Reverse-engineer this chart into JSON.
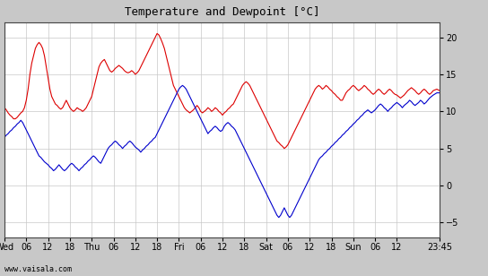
{
  "title": "Temperature and Dewpoint [°C]",
  "ylim": [
    -7,
    22
  ],
  "yticks": [
    -5,
    0,
    5,
    10,
    15,
    20
  ],
  "outer_bg": "#c8c8c8",
  "plot_bg_color": "#ffffff",
  "grid_color": "#c8c8c8",
  "temp_color": "#dd0000",
  "dewp_color": "#0000cc",
  "line_width": 0.8,
  "watermark": "www.vaisala.com",
  "xlabel_ticks": [
    "Wed",
    "06",
    "12",
    "18",
    "Thu",
    "06",
    "12",
    "18",
    "Fri",
    "06",
    "12",
    "18",
    "Sat",
    "06",
    "12",
    "18",
    "Sun",
    "06",
    "12",
    "23:45"
  ],
  "xtick_positions": [
    0,
    6,
    12,
    18,
    24,
    30,
    36,
    42,
    48,
    54,
    60,
    66,
    72,
    78,
    84,
    90,
    96,
    102,
    108,
    119.75
  ],
  "total_hours": 119.75,
  "temp_data": [
    [
      0,
      10.5
    ],
    [
      0.5,
      10.2
    ],
    [
      1,
      9.8
    ],
    [
      1.5,
      9.5
    ],
    [
      2,
      9.3
    ],
    [
      2.5,
      9.0
    ],
    [
      3,
      9.0
    ],
    [
      3.5,
      9.2
    ],
    [
      4,
      9.5
    ],
    [
      4.5,
      9.8
    ],
    [
      5,
      10.0
    ],
    [
      5.5,
      10.5
    ],
    [
      6,
      11.5
    ],
    [
      6.5,
      13.0
    ],
    [
      7,
      15.0
    ],
    [
      7.5,
      16.5
    ],
    [
      8,
      17.5
    ],
    [
      8.5,
      18.5
    ],
    [
      9,
      19.0
    ],
    [
      9.5,
      19.3
    ],
    [
      10,
      19.0
    ],
    [
      10.5,
      18.5
    ],
    [
      11,
      17.5
    ],
    [
      11.5,
      16.0
    ],
    [
      12,
      14.5
    ],
    [
      12.5,
      13.0
    ],
    [
      13,
      12.0
    ],
    [
      13.5,
      11.5
    ],
    [
      14,
      11.0
    ],
    [
      14.5,
      10.8
    ],
    [
      15,
      10.5
    ],
    [
      15.5,
      10.3
    ],
    [
      16,
      10.5
    ],
    [
      16.5,
      11.0
    ],
    [
      17,
      11.5
    ],
    [
      17.5,
      11.0
    ],
    [
      18,
      10.5
    ],
    [
      18.5,
      10.2
    ],
    [
      19,
      10.0
    ],
    [
      19.5,
      10.2
    ],
    [
      20,
      10.5
    ],
    [
      20.5,
      10.3
    ],
    [
      21,
      10.2
    ],
    [
      21.5,
      10.0
    ],
    [
      22,
      10.2
    ],
    [
      22.5,
      10.5
    ],
    [
      23,
      11.0
    ],
    [
      23.5,
      11.5
    ],
    [
      24,
      12.0
    ],
    [
      24.5,
      13.0
    ],
    [
      25,
      14.0
    ],
    [
      25.5,
      15.0
    ],
    [
      26,
      16.0
    ],
    [
      26.5,
      16.5
    ],
    [
      27,
      16.8
    ],
    [
      27.5,
      17.0
    ],
    [
      28,
      16.5
    ],
    [
      28.5,
      16.0
    ],
    [
      29,
      15.5
    ],
    [
      29.5,
      15.3
    ],
    [
      30,
      15.5
    ],
    [
      30.5,
      15.8
    ],
    [
      31,
      16.0
    ],
    [
      31.5,
      16.2
    ],
    [
      32,
      16.0
    ],
    [
      32.5,
      15.8
    ],
    [
      33,
      15.5
    ],
    [
      33.5,
      15.3
    ],
    [
      34,
      15.2
    ],
    [
      34.5,
      15.3
    ],
    [
      35,
      15.5
    ],
    [
      35.5,
      15.3
    ],
    [
      36,
      15.0
    ],
    [
      36.5,
      15.2
    ],
    [
      37,
      15.5
    ],
    [
      37.5,
      16.0
    ],
    [
      38,
      16.5
    ],
    [
      38.5,
      17.0
    ],
    [
      39,
      17.5
    ],
    [
      39.5,
      18.0
    ],
    [
      40,
      18.5
    ],
    [
      40.5,
      19.0
    ],
    [
      41,
      19.5
    ],
    [
      41.5,
      20.0
    ],
    [
      42,
      20.5
    ],
    [
      42.5,
      20.3
    ],
    [
      43,
      19.8
    ],
    [
      43.5,
      19.2
    ],
    [
      44,
      18.5
    ],
    [
      44.5,
      17.5
    ],
    [
      45,
      16.5
    ],
    [
      45.5,
      15.5
    ],
    [
      46,
      14.5
    ],
    [
      46.5,
      13.5
    ],
    [
      47,
      13.0
    ],
    [
      47.5,
      12.5
    ],
    [
      48,
      12.0
    ],
    [
      48.5,
      11.5
    ],
    [
      49,
      11.0
    ],
    [
      49.5,
      10.5
    ],
    [
      50,
      10.2
    ],
    [
      50.5,
      10.0
    ],
    [
      51,
      9.8
    ],
    [
      51.5,
      10.0
    ],
    [
      52,
      10.2
    ],
    [
      52.5,
      10.5
    ],
    [
      53,
      10.8
    ],
    [
      53.5,
      10.5
    ],
    [
      54,
      10.0
    ],
    [
      54.5,
      9.8
    ],
    [
      55,
      10.0
    ],
    [
      55.5,
      10.2
    ],
    [
      56,
      10.5
    ],
    [
      56.5,
      10.3
    ],
    [
      57,
      10.0
    ],
    [
      57.5,
      10.2
    ],
    [
      58,
      10.5
    ],
    [
      58.5,
      10.3
    ],
    [
      59,
      10.0
    ],
    [
      59.5,
      9.8
    ],
    [
      60,
      9.5
    ],
    [
      60.5,
      9.8
    ],
    [
      61,
      10.0
    ],
    [
      61.5,
      10.3
    ],
    [
      62,
      10.5
    ],
    [
      62.5,
      10.8
    ],
    [
      63,
      11.0
    ],
    [
      63.5,
      11.5
    ],
    [
      64,
      12.0
    ],
    [
      64.5,
      12.5
    ],
    [
      65,
      13.0
    ],
    [
      65.5,
      13.5
    ],
    [
      66,
      13.8
    ],
    [
      66.5,
      14.0
    ],
    [
      67,
      13.8
    ],
    [
      67.5,
      13.5
    ],
    [
      68,
      13.0
    ],
    [
      68.5,
      12.5
    ],
    [
      69,
      12.0
    ],
    [
      69.5,
      11.5
    ],
    [
      70,
      11.0
    ],
    [
      70.5,
      10.5
    ],
    [
      71,
      10.0
    ],
    [
      71.5,
      9.5
    ],
    [
      72,
      9.0
    ],
    [
      72.5,
      8.5
    ],
    [
      73,
      8.0
    ],
    [
      73.5,
      7.5
    ],
    [
      74,
      7.0
    ],
    [
      74.5,
      6.5
    ],
    [
      75,
      6.0
    ],
    [
      75.5,
      5.8
    ],
    [
      76,
      5.5
    ],
    [
      76.5,
      5.3
    ],
    [
      77,
      5.0
    ],
    [
      77.5,
      5.2
    ],
    [
      78,
      5.5
    ],
    [
      78.5,
      6.0
    ],
    [
      79,
      6.5
    ],
    [
      79.5,
      7.0
    ],
    [
      80,
      7.5
    ],
    [
      80.5,
      8.0
    ],
    [
      81,
      8.5
    ],
    [
      81.5,
      9.0
    ],
    [
      82,
      9.5
    ],
    [
      82.5,
      10.0
    ],
    [
      83,
      10.5
    ],
    [
      83.5,
      11.0
    ],
    [
      84,
      11.5
    ],
    [
      84.5,
      12.0
    ],
    [
      85,
      12.5
    ],
    [
      85.5,
      13.0
    ],
    [
      86,
      13.3
    ],
    [
      86.5,
      13.5
    ],
    [
      87,
      13.3
    ],
    [
      87.5,
      13.0
    ],
    [
      88,
      13.2
    ],
    [
      88.5,
      13.5
    ],
    [
      89,
      13.3
    ],
    [
      89.5,
      13.0
    ],
    [
      90,
      12.8
    ],
    [
      90.5,
      12.5
    ],
    [
      91,
      12.3
    ],
    [
      91.5,
      12.0
    ],
    [
      92,
      11.8
    ],
    [
      92.5,
      11.5
    ],
    [
      93,
      11.5
    ],
    [
      93.5,
      12.0
    ],
    [
      94,
      12.5
    ],
    [
      94.5,
      12.8
    ],
    [
      95,
      13.0
    ],
    [
      95.5,
      13.3
    ],
    [
      96,
      13.5
    ],
    [
      96.5,
      13.3
    ],
    [
      97,
      13.0
    ],
    [
      97.5,
      12.8
    ],
    [
      98,
      13.0
    ],
    [
      98.5,
      13.2
    ],
    [
      99,
      13.5
    ],
    [
      99.5,
      13.3
    ],
    [
      100,
      13.0
    ],
    [
      100.5,
      12.8
    ],
    [
      101,
      12.5
    ],
    [
      101.5,
      12.3
    ],
    [
      102,
      12.5
    ],
    [
      102.5,
      12.8
    ],
    [
      103,
      13.0
    ],
    [
      103.5,
      12.8
    ],
    [
      104,
      12.5
    ],
    [
      104.5,
      12.3
    ],
    [
      105,
      12.5
    ],
    [
      105.5,
      12.8
    ],
    [
      106,
      13.0
    ],
    [
      106.5,
      12.8
    ],
    [
      107,
      12.5
    ],
    [
      107.5,
      12.3
    ],
    [
      108,
      12.2
    ],
    [
      108.5,
      12.0
    ],
    [
      109,
      11.8
    ],
    [
      109.5,
      12.0
    ],
    [
      110,
      12.2
    ],
    [
      110.5,
      12.5
    ],
    [
      111,
      12.8
    ],
    [
      111.5,
      13.0
    ],
    [
      112,
      13.2
    ],
    [
      112.5,
      13.0
    ],
    [
      113,
      12.8
    ],
    [
      113.5,
      12.5
    ],
    [
      114,
      12.3
    ],
    [
      114.5,
      12.5
    ],
    [
      115,
      12.8
    ],
    [
      115.5,
      13.0
    ],
    [
      116,
      12.8
    ],
    [
      116.5,
      12.5
    ],
    [
      117,
      12.3
    ],
    [
      117.5,
      12.5
    ],
    [
      118,
      12.8
    ],
    [
      119,
      13.0
    ],
    [
      119.75,
      12.8
    ]
  ],
  "dewp_data": [
    [
      0,
      6.5
    ],
    [
      0.5,
      6.8
    ],
    [
      1,
      7.0
    ],
    [
      1.5,
      7.3
    ],
    [
      2,
      7.5
    ],
    [
      2.5,
      7.8
    ],
    [
      3,
      8.0
    ],
    [
      3.5,
      8.3
    ],
    [
      4,
      8.5
    ],
    [
      4.5,
      8.8
    ],
    [
      5,
      8.5
    ],
    [
      5.5,
      8.0
    ],
    [
      6,
      7.5
    ],
    [
      6.5,
      7.0
    ],
    [
      7,
      6.5
    ],
    [
      7.5,
      6.0
    ],
    [
      8,
      5.5
    ],
    [
      8.5,
      5.0
    ],
    [
      9,
      4.5
    ],
    [
      9.5,
      4.0
    ],
    [
      10,
      3.8
    ],
    [
      10.5,
      3.5
    ],
    [
      11,
      3.2
    ],
    [
      11.5,
      3.0
    ],
    [
      12,
      2.8
    ],
    [
      12.5,
      2.5
    ],
    [
      13,
      2.3
    ],
    [
      13.5,
      2.0
    ],
    [
      14,
      2.2
    ],
    [
      14.5,
      2.5
    ],
    [
      15,
      2.8
    ],
    [
      15.5,
      2.5
    ],
    [
      16,
      2.2
    ],
    [
      16.5,
      2.0
    ],
    [
      17,
      2.2
    ],
    [
      17.5,
      2.5
    ],
    [
      18,
      2.8
    ],
    [
      18.5,
      3.0
    ],
    [
      19,
      2.8
    ],
    [
      19.5,
      2.5
    ],
    [
      20,
      2.3
    ],
    [
      20.5,
      2.0
    ],
    [
      21,
      2.3
    ],
    [
      21.5,
      2.5
    ],
    [
      22,
      2.8
    ],
    [
      22.5,
      3.0
    ],
    [
      23,
      3.3
    ],
    [
      23.5,
      3.5
    ],
    [
      24,
      3.8
    ],
    [
      24.5,
      4.0
    ],
    [
      25,
      3.8
    ],
    [
      25.5,
      3.5
    ],
    [
      26,
      3.2
    ],
    [
      26.5,
      3.0
    ],
    [
      27,
      3.5
    ],
    [
      27.5,
      4.0
    ],
    [
      28,
      4.5
    ],
    [
      28.5,
      5.0
    ],
    [
      29,
      5.3
    ],
    [
      29.5,
      5.5
    ],
    [
      30,
      5.8
    ],
    [
      30.5,
      6.0
    ],
    [
      31,
      5.8
    ],
    [
      31.5,
      5.5
    ],
    [
      32,
      5.3
    ],
    [
      32.5,
      5.0
    ],
    [
      33,
      5.3
    ],
    [
      33.5,
      5.5
    ],
    [
      34,
      5.8
    ],
    [
      34.5,
      6.0
    ],
    [
      35,
      5.8
    ],
    [
      35.5,
      5.5
    ],
    [
      36,
      5.2
    ],
    [
      36.5,
      5.0
    ],
    [
      37,
      4.8
    ],
    [
      37.5,
      4.5
    ],
    [
      38,
      4.8
    ],
    [
      38.5,
      5.0
    ],
    [
      39,
      5.3
    ],
    [
      39.5,
      5.5
    ],
    [
      40,
      5.8
    ],
    [
      40.5,
      6.0
    ],
    [
      41,
      6.3
    ],
    [
      41.5,
      6.5
    ],
    [
      42,
      7.0
    ],
    [
      42.5,
      7.5
    ],
    [
      43,
      8.0
    ],
    [
      43.5,
      8.5
    ],
    [
      44,
      9.0
    ],
    [
      44.5,
      9.5
    ],
    [
      45,
      10.0
    ],
    [
      45.5,
      10.5
    ],
    [
      46,
      11.0
    ],
    [
      46.5,
      11.5
    ],
    [
      47,
      12.0
    ],
    [
      47.5,
      12.5
    ],
    [
      48,
      13.0
    ],
    [
      48.5,
      13.3
    ],
    [
      49,
      13.5
    ],
    [
      49.5,
      13.3
    ],
    [
      50,
      13.0
    ],
    [
      50.5,
      12.5
    ],
    [
      51,
      12.0
    ],
    [
      51.5,
      11.5
    ],
    [
      52,
      11.0
    ],
    [
      52.5,
      10.5
    ],
    [
      53,
      10.0
    ],
    [
      53.5,
      9.5
    ],
    [
      54,
      9.0
    ],
    [
      54.5,
      8.5
    ],
    [
      55,
      8.0
    ],
    [
      55.5,
      7.5
    ],
    [
      56,
      7.0
    ],
    [
      56.5,
      7.3
    ],
    [
      57,
      7.5
    ],
    [
      57.5,
      7.8
    ],
    [
      58,
      8.0
    ],
    [
      58.5,
      7.8
    ],
    [
      59,
      7.5
    ],
    [
      59.5,
      7.3
    ],
    [
      60,
      7.5
    ],
    [
      60.5,
      8.0
    ],
    [
      61,
      8.3
    ],
    [
      61.5,
      8.5
    ],
    [
      62,
      8.3
    ],
    [
      62.5,
      8.0
    ],
    [
      63,
      7.8
    ],
    [
      63.5,
      7.5
    ],
    [
      64,
      7.0
    ],
    [
      64.5,
      6.5
    ],
    [
      65,
      6.0
    ],
    [
      65.5,
      5.5
    ],
    [
      66,
      5.0
    ],
    [
      66.5,
      4.5
    ],
    [
      67,
      4.0
    ],
    [
      67.5,
      3.5
    ],
    [
      68,
      3.0
    ],
    [
      68.5,
      2.5
    ],
    [
      69,
      2.0
    ],
    [
      69.5,
      1.5
    ],
    [
      70,
      1.0
    ],
    [
      70.5,
      0.5
    ],
    [
      71,
      0.0
    ],
    [
      71.5,
      -0.5
    ],
    [
      72,
      -1.0
    ],
    [
      72.5,
      -1.5
    ],
    [
      73,
      -2.0
    ],
    [
      73.5,
      -2.5
    ],
    [
      74,
      -3.0
    ],
    [
      74.5,
      -3.5
    ],
    [
      75,
      -4.0
    ],
    [
      75.5,
      -4.3
    ],
    [
      76,
      -4.0
    ],
    [
      76.5,
      -3.5
    ],
    [
      77,
      -3.0
    ],
    [
      77.5,
      -3.5
    ],
    [
      78,
      -4.0
    ],
    [
      78.5,
      -4.3
    ],
    [
      79,
      -4.0
    ],
    [
      79.5,
      -3.5
    ],
    [
      80,
      -3.0
    ],
    [
      80.5,
      -2.5
    ],
    [
      81,
      -2.0
    ],
    [
      81.5,
      -1.5
    ],
    [
      82,
      -1.0
    ],
    [
      82.5,
      -0.5
    ],
    [
      83,
      0.0
    ],
    [
      83.5,
      0.5
    ],
    [
      84,
      1.0
    ],
    [
      84.5,
      1.5
    ],
    [
      85,
      2.0
    ],
    [
      85.5,
      2.5
    ],
    [
      86,
      3.0
    ],
    [
      86.5,
      3.5
    ],
    [
      87,
      3.8
    ],
    [
      87.5,
      4.0
    ],
    [
      88,
      4.3
    ],
    [
      88.5,
      4.5
    ],
    [
      89,
      4.8
    ],
    [
      89.5,
      5.0
    ],
    [
      90,
      5.3
    ],
    [
      90.5,
      5.5
    ],
    [
      91,
      5.8
    ],
    [
      91.5,
      6.0
    ],
    [
      92,
      6.3
    ],
    [
      92.5,
      6.5
    ],
    [
      93,
      6.8
    ],
    [
      93.5,
      7.0
    ],
    [
      94,
      7.3
    ],
    [
      94.5,
      7.5
    ],
    [
      95,
      7.8
    ],
    [
      95.5,
      8.0
    ],
    [
      96,
      8.3
    ],
    [
      96.5,
      8.5
    ],
    [
      97,
      8.8
    ],
    [
      97.5,
      9.0
    ],
    [
      98,
      9.3
    ],
    [
      98.5,
      9.5
    ],
    [
      99,
      9.8
    ],
    [
      99.5,
      10.0
    ],
    [
      100,
      10.2
    ],
    [
      100.5,
      10.0
    ],
    [
      101,
      9.8
    ],
    [
      101.5,
      10.0
    ],
    [
      102,
      10.2
    ],
    [
      102.5,
      10.5
    ],
    [
      103,
      10.8
    ],
    [
      103.5,
      11.0
    ],
    [
      104,
      10.8
    ],
    [
      104.5,
      10.5
    ],
    [
      105,
      10.3
    ],
    [
      105.5,
      10.0
    ],
    [
      106,
      10.3
    ],
    [
      106.5,
      10.5
    ],
    [
      107,
      10.8
    ],
    [
      107.5,
      11.0
    ],
    [
      108,
      11.2
    ],
    [
      108.5,
      11.0
    ],
    [
      109,
      10.8
    ],
    [
      109.5,
      10.5
    ],
    [
      110,
      10.8
    ],
    [
      110.5,
      11.0
    ],
    [
      111,
      11.2
    ],
    [
      111.5,
      11.5
    ],
    [
      112,
      11.3
    ],
    [
      112.5,
      11.0
    ],
    [
      113,
      10.8
    ],
    [
      113.5,
      11.0
    ],
    [
      114,
      11.2
    ],
    [
      114.5,
      11.5
    ],
    [
      115,
      11.3
    ],
    [
      115.5,
      11.0
    ],
    [
      116,
      11.2
    ],
    [
      116.5,
      11.5
    ],
    [
      117,
      11.8
    ],
    [
      117.5,
      12.0
    ],
    [
      118,
      12.2
    ],
    [
      119,
      12.5
    ],
    [
      119.75,
      12.5
    ]
  ]
}
